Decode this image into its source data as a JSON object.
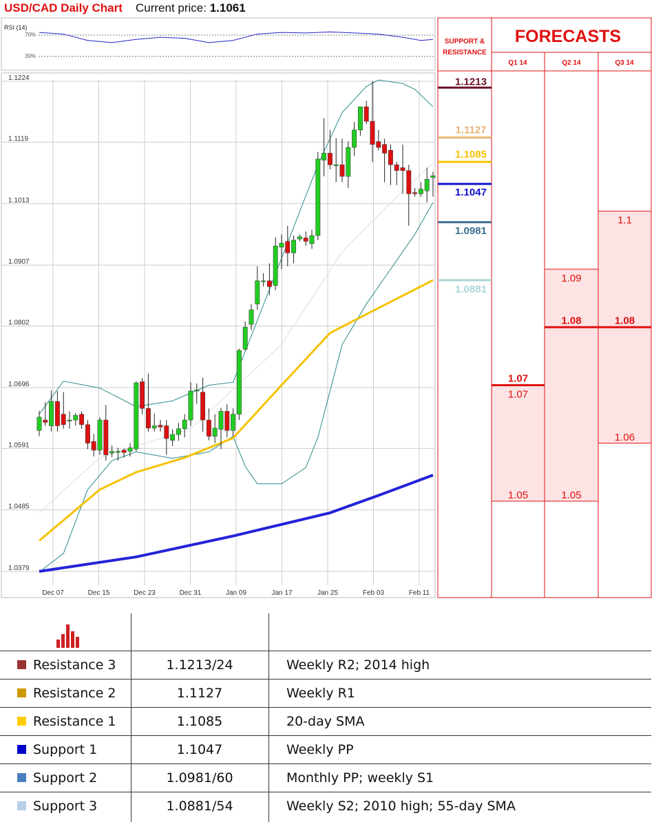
{
  "header": {
    "title": "USD/CAD Daily Chart",
    "price_label": "Current price:",
    "price_value": "1.1061"
  },
  "rsi": {
    "label": "RSI (14)",
    "level_high": "70%",
    "level_low": "30%"
  },
  "forecasts": {
    "title": "FORECASTS",
    "sr_header_line1": "SUPPORT &",
    "sr_header_line2": "RESISTANCE",
    "columns": [
      "Q1 14",
      "Q2 14",
      "Q3 14"
    ]
  },
  "colors": {
    "bull": "#22cc22",
    "bear": "#dd1111",
    "sma20": "#dddddd",
    "sma55": "#f5c200",
    "sma200": "#2323d8",
    "bollinger": "#2a8a8a",
    "forecast": "#e01010",
    "forecast_fill": "#fde3e3"
  },
  "chart_data": [
    {
      "type": "candlestick",
      "title": "USD/CAD Daily Chart",
      "ylim": [
        1.0379,
        1.1224
      ],
      "y_ticks": [
        "1.1224",
        "1.1119",
        "1.1013",
        "1.0907",
        "1.0802",
        "1.0696",
        "1.0591",
        "1.0485",
        "1.0379"
      ],
      "x_ticks": [
        "Dec 07",
        "Dec 15",
        "Dec 23",
        "Dec 31",
        "Jan 09",
        "Jan 17",
        "Jan 25",
        "Feb 03",
        "Feb 11"
      ],
      "candles": [
        {
          "o": 1.0622,
          "h": 1.0656,
          "l": 1.0612,
          "c": 1.0645
        },
        {
          "o": 1.064,
          "h": 1.0671,
          "l": 1.063,
          "c": 1.0636
        },
        {
          "o": 1.063,
          "h": 1.0691,
          "l": 1.062,
          "c": 1.0672
        },
        {
          "o": 1.0672,
          "h": 1.069,
          "l": 1.062,
          "c": 1.063
        },
        {
          "o": 1.065,
          "h": 1.0688,
          "l": 1.0625,
          "c": 1.0632
        },
        {
          "o": 1.064,
          "h": 1.0655,
          "l": 1.0625,
          "c": 1.064
        },
        {
          "o": 1.064,
          "h": 1.0652,
          "l": 1.063,
          "c": 1.0648
        },
        {
          "o": 1.065,
          "h": 1.0655,
          "l": 1.0625,
          "c": 1.0632
        },
        {
          "o": 1.0632,
          "h": 1.064,
          "l": 1.059,
          "c": 1.06
        },
        {
          "o": 1.0603,
          "h": 1.0616,
          "l": 1.0577,
          "c": 1.0588
        },
        {
          "o": 1.0588,
          "h": 1.0645,
          "l": 1.058,
          "c": 1.064
        },
        {
          "o": 1.064,
          "h": 1.0666,
          "l": 1.057,
          "c": 1.058
        },
        {
          "o": 1.0583,
          "h": 1.0596,
          "l": 1.0576,
          "c": 1.0586
        },
        {
          "o": 1.0586,
          "h": 1.0592,
          "l": 1.057,
          "c": 1.0586
        },
        {
          "o": 1.0588,
          "h": 1.0591,
          "l": 1.0575,
          "c": 1.0584
        },
        {
          "o": 1.0586,
          "h": 1.06,
          "l": 1.0577,
          "c": 1.0592
        },
        {
          "o": 1.059,
          "h": 1.0707,
          "l": 1.0586,
          "c": 1.0704
        },
        {
          "o": 1.0706,
          "h": 1.0712,
          "l": 1.065,
          "c": 1.066
        },
        {
          "o": 1.066,
          "h": 1.072,
          "l": 1.062,
          "c": 1.0626
        },
        {
          "o": 1.0626,
          "h": 1.0651,
          "l": 1.062,
          "c": 1.063
        },
        {
          "o": 1.0631,
          "h": 1.064,
          "l": 1.062,
          "c": 1.0628
        },
        {
          "o": 1.063,
          "h": 1.064,
          "l": 1.058,
          "c": 1.0608
        },
        {
          "o": 1.0605,
          "h": 1.0624,
          "l": 1.0595,
          "c": 1.0615
        },
        {
          "o": 1.0615,
          "h": 1.0635,
          "l": 1.0604,
          "c": 1.0625
        },
        {
          "o": 1.0625,
          "h": 1.065,
          "l": 1.061,
          "c": 1.064
        },
        {
          "o": 1.064,
          "h": 1.0705,
          "l": 1.063,
          "c": 1.069
        },
        {
          "o": 1.069,
          "h": 1.0703,
          "l": 1.0668,
          "c": 1.0692
        },
        {
          "o": 1.0688,
          "h": 1.0713,
          "l": 1.062,
          "c": 1.064
        },
        {
          "o": 1.064,
          "h": 1.066,
          "l": 1.0605,
          "c": 1.0612
        },
        {
          "o": 1.0612,
          "h": 1.065,
          "l": 1.06,
          "c": 1.0626
        },
        {
          "o": 1.0624,
          "h": 1.0661,
          "l": 1.059,
          "c": 1.0655
        },
        {
          "o": 1.0655,
          "h": 1.0667,
          "l": 1.061,
          "c": 1.0622
        },
        {
          "o": 1.0622,
          "h": 1.066,
          "l": 1.0612,
          "c": 1.065
        },
        {
          "o": 1.065,
          "h": 1.0763,
          "l": 1.064,
          "c": 1.076
        },
        {
          "o": 1.0762,
          "h": 1.081,
          "l": 1.076,
          "c": 1.08
        },
        {
          "o": 1.0805,
          "h": 1.084,
          "l": 1.0795,
          "c": 1.083
        },
        {
          "o": 1.084,
          "h": 1.0905,
          "l": 1.083,
          "c": 1.088
        },
        {
          "o": 1.088,
          "h": 1.0893,
          "l": 1.087,
          "c": 1.088
        },
        {
          "o": 1.088,
          "h": 1.091,
          "l": 1.0855,
          "c": 1.087
        },
        {
          "o": 1.0872,
          "h": 1.0955,
          "l": 1.0864,
          "c": 1.094
        },
        {
          "o": 1.0938,
          "h": 1.096,
          "l": 1.09,
          "c": 1.0945
        },
        {
          "o": 1.0948,
          "h": 1.0975,
          "l": 1.0905,
          "c": 1.0928
        },
        {
          "o": 1.0928,
          "h": 1.0958,
          "l": 1.091,
          "c": 1.095
        },
        {
          "o": 1.0952,
          "h": 1.096,
          "l": 1.0948,
          "c": 1.0956
        },
        {
          "o": 1.0954,
          "h": 1.0965,
          "l": 1.094,
          "c": 1.0948
        },
        {
          "o": 1.0944,
          "h": 1.0968,
          "l": 1.0935,
          "c": 1.0958
        },
        {
          "o": 1.0958,
          "h": 1.1102,
          "l": 1.095,
          "c": 1.109
        },
        {
          "o": 1.1088,
          "h": 1.116,
          "l": 1.106,
          "c": 1.11
        },
        {
          "o": 1.11,
          "h": 1.114,
          "l": 1.1072,
          "c": 1.108
        },
        {
          "o": 1.108,
          "h": 1.1126,
          "l": 1.105,
          "c": 1.108
        },
        {
          "o": 1.108,
          "h": 1.1125,
          "l": 1.105,
          "c": 1.106
        },
        {
          "o": 1.106,
          "h": 1.112,
          "l": 1.104,
          "c": 1.111
        },
        {
          "o": 1.111,
          "h": 1.1154,
          "l": 1.1095,
          "c": 1.114
        },
        {
          "o": 1.114,
          "h": 1.118,
          "l": 1.113,
          "c": 1.118
        },
        {
          "o": 1.118,
          "h": 1.119,
          "l": 1.115,
          "c": 1.1155
        },
        {
          "o": 1.1155,
          "h": 1.1224,
          "l": 1.1085,
          "c": 1.1115
        },
        {
          "o": 1.112,
          "h": 1.114,
          "l": 1.1105,
          "c": 1.111
        },
        {
          "o": 1.1115,
          "h": 1.1125,
          "l": 1.105,
          "c": 1.11
        },
        {
          "o": 1.1105,
          "h": 1.1115,
          "l": 1.1045,
          "c": 1.108
        },
        {
          "o": 1.108,
          "h": 1.1085,
          "l": 1.1045,
          "c": 1.107
        },
        {
          "o": 1.1075,
          "h": 1.1115,
          "l": 1.103,
          "c": 1.107
        },
        {
          "o": 1.107,
          "h": 1.108,
          "l": 1.0975,
          "c": 1.103
        },
        {
          "o": 1.1032,
          "h": 1.104,
          "l": 1.1025,
          "c": 1.103
        },
        {
          "o": 1.103,
          "h": 1.105,
          "l": 1.1025,
          "c": 1.1038
        },
        {
          "o": 1.1035,
          "h": 1.1075,
          "l": 1.1015,
          "c": 1.1055
        },
        {
          "o": 1.1058,
          "h": 1.1068,
          "l": 1.1025,
          "c": 1.1061
        }
      ],
      "sma20": [
        [
          0,
          1.048
        ],
        [
          10,
          1.0575
        ],
        [
          25,
          1.0625
        ],
        [
          40,
          1.077
        ],
        [
          50,
          1.093
        ],
        [
          60,
          1.1035
        ],
        [
          65,
          1.1083
        ]
      ],
      "sma55": [
        [
          0,
          1.0432
        ],
        [
          10,
          1.052
        ],
        [
          16,
          1.055
        ],
        [
          24,
          1.0575
        ],
        [
          32,
          1.0609
        ],
        [
          40,
          1.07
        ],
        [
          48,
          1.079
        ],
        [
          56,
          1.0833
        ],
        [
          65,
          1.0881
        ]
      ],
      "sma200": [
        [
          0,
          1.0379
        ],
        [
          16,
          1.0404
        ],
        [
          32,
          1.044
        ],
        [
          48,
          1.048
        ],
        [
          56,
          1.051
        ],
        [
          65,
          1.0545
        ]
      ],
      "bollinger_upper": [
        [
          0,
          1.065
        ],
        [
          4,
          1.0707
        ],
        [
          10,
          1.0695
        ],
        [
          16,
          1.0663
        ],
        [
          22,
          1.0673
        ],
        [
          28,
          1.07
        ],
        [
          32,
          1.0705
        ],
        [
          38,
          1.0865
        ],
        [
          46,
          1.108
        ],
        [
          50,
          1.117
        ],
        [
          54,
          1.1215
        ],
        [
          56,
          1.1226
        ],
        [
          60,
          1.122
        ],
        [
          62,
          1.121
        ],
        [
          65,
          1.118
        ]
      ],
      "bollinger_lower": [
        [
          0,
          1.0378
        ],
        [
          4,
          1.041
        ],
        [
          8,
          1.052
        ],
        [
          12,
          1.057
        ],
        [
          16,
          1.0585
        ],
        [
          22,
          1.0574
        ],
        [
          28,
          1.0585
        ],
        [
          32,
          1.0612
        ],
        [
          34,
          1.056
        ],
        [
          36,
          1.053
        ],
        [
          40,
          1.053
        ],
        [
          44,
          1.0558
        ],
        [
          46,
          1.061
        ],
        [
          50,
          1.077
        ],
        [
          54,
          1.084
        ],
        [
          58,
          1.09
        ],
        [
          62,
          1.096
        ],
        [
          65,
          1.1015
        ]
      ],
      "rsi_values": [
        [
          0,
          75
        ],
        [
          4,
          72
        ],
        [
          8,
          60
        ],
        [
          12,
          56
        ],
        [
          16,
          62
        ],
        [
          20,
          66
        ],
        [
          24,
          64
        ],
        [
          28,
          56
        ],
        [
          32,
          60
        ],
        [
          36,
          72
        ],
        [
          40,
          75
        ],
        [
          44,
          74
        ],
        [
          48,
          76
        ],
        [
          52,
          74
        ],
        [
          56,
          72
        ],
        [
          60,
          66
        ],
        [
          63,
          60
        ],
        [
          65,
          62
        ]
      ],
      "resistance_support": [
        {
          "name": "Resistance 3",
          "level": 1.1213,
          "label": "1.1213",
          "color": "#6a0d24"
        },
        {
          "name": "Resistance 2",
          "level": 1.1127,
          "label": "1.1127",
          "color": "#e5b472"
        },
        {
          "name": "Resistance 1",
          "level": 1.1085,
          "label": "1.1085",
          "color": "#f5c200"
        },
        {
          "name": "Support 1",
          "level": 1.1047,
          "label": "1.1047",
          "color": "#1010d0"
        },
        {
          "name": "Support 2",
          "level": 1.0981,
          "label": "1.0981",
          "color": "#3b6e8f"
        },
        {
          "name": "Support 3",
          "level": 1.0881,
          "label": "1.0881",
          "color": "#aad6d6"
        }
      ],
      "forecast_ranges": [
        {
          "quarter": "Q1 14",
          "high": 1.07,
          "mid": 1.07,
          "low": 1.05,
          "high_label": "1.07",
          "mid_label": "1.07",
          "low_label": "1.05"
        },
        {
          "quarter": "Q2 14",
          "high": 1.09,
          "mid": 1.08,
          "low": 1.05,
          "high_label": "1.09",
          "mid_label": "1.08",
          "low_label": "1.05"
        },
        {
          "quarter": "Q3 14",
          "high": 1.1,
          "mid": 1.08,
          "low": 1.06,
          "high_label": "1.1",
          "mid_label": "1.08",
          "low_label": "1.06"
        }
      ]
    }
  ],
  "table": {
    "columns": [
      "",
      "",
      ""
    ],
    "rows": [
      {
        "name": "Resistance 3",
        "value": "1.1213/24",
        "note": "Weekly R2; 2014 high",
        "color": "#993333"
      },
      {
        "name": "Resistance 2",
        "value": "1.1127",
        "note": "Weekly R1",
        "color": "#cc9900"
      },
      {
        "name": "Resistance 1",
        "value": "1.1085",
        "note": "20-day SMA",
        "color": "#ffcc00"
      },
      {
        "name": "Support 1",
        "value": "1.1047",
        "note": "Weekly PP",
        "color": "#0000cc"
      },
      {
        "name": "Support 2",
        "value": "1.0981/60",
        "note": "Monthly PP; weekly S1",
        "color": "#4a7fbf"
      },
      {
        "name": "Support 3",
        "value": "1.0881/54",
        "note": "Weekly S2; 2010 high; 55-day SMA",
        "color": "#b7cde8"
      }
    ]
  }
}
